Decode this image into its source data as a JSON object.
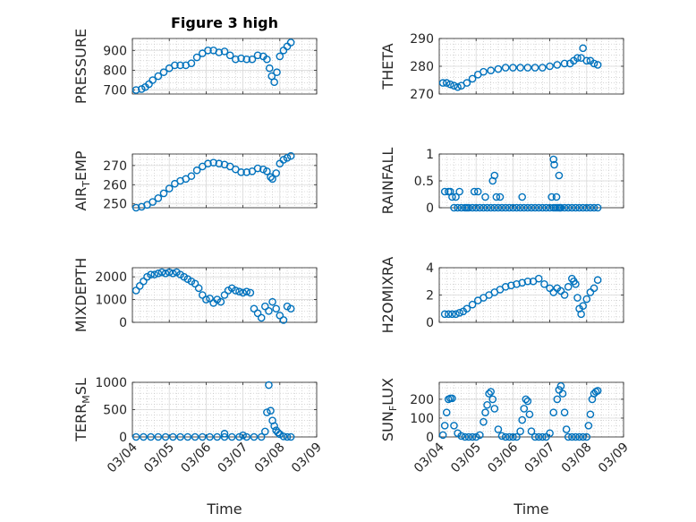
{
  "figure": {
    "title": "Figure 3 high",
    "colors": {
      "marker": "#0072BD",
      "axis": "#262626",
      "grid": "#bfbfbf",
      "background": "#ffffff"
    },
    "x_tick_labels": [
      "03/04",
      "03/05",
      "03/06",
      "03/07",
      "03/08",
      "03/09"
    ],
    "xlabel": "Time"
  },
  "chart_data": [
    {
      "type": "scatter",
      "title": "Figure 3 high",
      "ylabel": {
        "main": "PRESSURE"
      },
      "xlim": [
        0,
        5
      ],
      "ylim": [
        680,
        960
      ],
      "yticks": [
        700,
        800,
        900
      ],
      "grid": true,
      "minor_grid": true,
      "series": [
        {
          "x": [
            0.1,
            0.25,
            0.35,
            0.45,
            0.55,
            0.7,
            0.85,
            1.0,
            1.15,
            1.3,
            1.45,
            1.6,
            1.75,
            1.9,
            2.05,
            2.2,
            2.35,
            2.5,
            2.65,
            2.8,
            2.95,
            3.1,
            3.25,
            3.4,
            3.55,
            3.65,
            3.72,
            3.78,
            3.85,
            3.92,
            4.0,
            4.1,
            4.2,
            4.3
          ],
          "y": [
            700,
            705,
            715,
            730,
            750,
            770,
            790,
            810,
            825,
            825,
            825,
            835,
            865,
            885,
            900,
            900,
            890,
            895,
            875,
            855,
            860,
            855,
            855,
            875,
            870,
            855,
            810,
            770,
            740,
            790,
            870,
            900,
            920,
            940
          ]
        }
      ]
    },
    {
      "type": "scatter",
      "ylabel": {
        "main": "THETA"
      },
      "xlim": [
        0,
        5
      ],
      "ylim": [
        270,
        290
      ],
      "yticks": [
        270,
        280,
        290
      ],
      "grid": true,
      "minor_grid": true,
      "series": [
        {
          "x": [
            0.1,
            0.2,
            0.3,
            0.4,
            0.5,
            0.6,
            0.75,
            0.9,
            1.05,
            1.2,
            1.4,
            1.6,
            1.8,
            2.0,
            2.2,
            2.4,
            2.6,
            2.8,
            3.0,
            3.2,
            3.4,
            3.55,
            3.65,
            3.75,
            3.85,
            3.9,
            4.0,
            4.1,
            4.2,
            4.3
          ],
          "y": [
            274,
            274,
            273.5,
            273,
            272.5,
            273,
            274,
            275.5,
            277,
            278,
            278.5,
            279,
            279.5,
            279.5,
            279.5,
            279.5,
            279.5,
            279.5,
            280,
            280.5,
            281,
            281,
            282,
            283,
            283,
            286.5,
            282,
            282,
            281,
            280.5
          ]
        }
      ]
    },
    {
      "type": "scatter",
      "ylabel": {
        "main": "AIR",
        "sub": "T",
        "rest": "EMP"
      },
      "xlim": [
        0,
        5
      ],
      "ylim": [
        248,
        276
      ],
      "yticks": [
        250,
        260,
        270
      ],
      "grid": true,
      "minor_grid": true,
      "series": [
        {
          "x": [
            0.1,
            0.25,
            0.4,
            0.55,
            0.7,
            0.85,
            1.0,
            1.15,
            1.3,
            1.45,
            1.6,
            1.75,
            1.9,
            2.05,
            2.2,
            2.35,
            2.5,
            2.65,
            2.8,
            2.95,
            3.1,
            3.25,
            3.4,
            3.55,
            3.65,
            3.75,
            3.8,
            3.9,
            4.0,
            4.1,
            4.2,
            4.3
          ],
          "y": [
            248,
            248.5,
            249.5,
            251,
            253,
            255.5,
            258,
            260.5,
            262,
            263,
            264.5,
            267.5,
            269.5,
            271,
            271.5,
            271,
            270.5,
            269.5,
            268,
            266.5,
            266.5,
            267,
            268.5,
            268,
            267,
            264,
            263,
            266,
            271,
            273,
            274,
            275
          ]
        }
      ]
    },
    {
      "type": "scatter",
      "ylabel": {
        "main": "RAINFALL"
      },
      "xlim": [
        0,
        5
      ],
      "ylim": [
        0,
        1
      ],
      "yticks": [
        0,
        0.5,
        1
      ],
      "ytick_labels": [
        "0",
        "0.5",
        "1"
      ],
      "grid": true,
      "minor_grid": true,
      "series": [
        {
          "x": [
            0.15,
            0.25,
            0.3,
            0.4,
            0.5,
            0.55,
            0.6,
            0.7,
            0.75,
            0.8,
            0.9,
            1.0,
            1.1,
            1.2,
            1.3,
            1.4,
            1.5,
            1.55,
            1.6,
            1.7,
            1.8,
            1.9,
            2.0,
            2.1,
            2.2,
            2.3,
            2.4,
            2.5,
            2.6,
            2.7,
            2.8,
            2.9,
            3.0,
            3.1,
            3.15,
            3.2,
            3.25,
            3.3,
            3.4,
            3.5,
            3.6,
            3.7,
            3.8,
            3.9,
            4.0,
            4.1,
            4.2,
            4.3,
            0.35,
            0.45,
            0.95,
            1.05,
            1.25,
            1.45,
            1.5,
            1.65,
            2.25,
            3.05,
            3.1,
            3.12,
            3.18,
            3.25,
            3.28
          ],
          "y": [
            0.3,
            0.3,
            0.3,
            0,
            0,
            0.3,
            0,
            0,
            0,
            0,
            0,
            0,
            0,
            0,
            0,
            0,
            0,
            0.2,
            0,
            0,
            0,
            0,
            0,
            0,
            0,
            0,
            0,
            0,
            0,
            0,
            0,
            0,
            0,
            0,
            0,
            0,
            0,
            0,
            0,
            0,
            0,
            0,
            0,
            0,
            0,
            0,
            0,
            0,
            0.2,
            0.2,
            0.3,
            0.3,
            0.2,
            0.5,
            0.6,
            0.2,
            0.2,
            0.2,
            0.9,
            0.8,
            0.2,
            0.6,
            0
          ]
        }
      ]
    },
    {
      "type": "scatter",
      "ylabel": {
        "main": "MIXDEPTH"
      },
      "xlim": [
        0,
        5
      ],
      "ylim": [
        0,
        2400
      ],
      "yticks": [
        0,
        1000,
        2000
      ],
      "grid": true,
      "minor_grid": true,
      "series": [
        {
          "x": [
            0.1,
            0.2,
            0.3,
            0.4,
            0.5,
            0.6,
            0.7,
            0.8,
            0.9,
            1.0,
            1.1,
            1.2,
            1.3,
            1.4,
            1.5,
            1.6,
            1.7,
            1.8,
            1.9,
            2.0,
            2.1,
            2.2,
            2.3,
            2.4,
            2.5,
            2.6,
            2.7,
            2.8,
            2.9,
            3.0,
            3.1,
            3.2,
            3.3,
            3.4,
            3.5,
            3.6,
            3.7,
            3.8,
            3.9,
            4.0,
            4.1,
            4.2,
            4.3
          ],
          "y": [
            1400,
            1600,
            1800,
            2000,
            2100,
            2100,
            2150,
            2200,
            2150,
            2200,
            2150,
            2200,
            2100,
            2000,
            1900,
            1800,
            1700,
            1500,
            1200,
            1000,
            1050,
            850,
            1000,
            900,
            1200,
            1400,
            1500,
            1400,
            1350,
            1300,
            1350,
            1300,
            600,
            400,
            200,
            700,
            500,
            900,
            600,
            300,
            100,
            700,
            600
          ]
        }
      ]
    },
    {
      "type": "scatter",
      "ylabel": {
        "main": "H2OMIXRA"
      },
      "xlim": [
        0,
        5
      ],
      "ylim": [
        0,
        4
      ],
      "yticks": [
        0,
        2,
        4
      ],
      "grid": true,
      "minor_grid": true,
      "series": [
        {
          "x": [
            0.15,
            0.25,
            0.35,
            0.45,
            0.55,
            0.65,
            0.75,
            0.9,
            1.05,
            1.2,
            1.35,
            1.5,
            1.65,
            1.8,
            1.95,
            2.1,
            2.25,
            2.4,
            2.55,
            2.7,
            2.85,
            3.0,
            3.1,
            3.2,
            3.3,
            3.4,
            3.5,
            3.6,
            3.65,
            3.7,
            3.75,
            3.8,
            3.85,
            3.9,
            4.0,
            4.1,
            4.2,
            4.3
          ],
          "y": [
            0.6,
            0.6,
            0.6,
            0.6,
            0.7,
            0.8,
            1.0,
            1.3,
            1.6,
            1.8,
            2.0,
            2.2,
            2.4,
            2.6,
            2.7,
            2.8,
            2.9,
            3.0,
            3.0,
            3.2,
            2.8,
            2.5,
            2.2,
            2.5,
            2.3,
            2.0,
            2.6,
            3.2,
            3.0,
            2.8,
            1.8,
            1.0,
            0.6,
            1.2,
            1.7,
            2.2,
            2.5,
            3.1
          ]
        }
      ]
    },
    {
      "type": "scatter",
      "ylabel": {
        "main": "TERR",
        "sub": "M",
        "rest": "SL"
      },
      "xlim": [
        0,
        5
      ],
      "ylim": [
        0,
        1000
      ],
      "yticks": [
        0,
        500,
        1000
      ],
      "grid": true,
      "minor_grid": true,
      "series": [
        {
          "x": [
            0.1,
            0.3,
            0.5,
            0.7,
            0.9,
            1.1,
            1.3,
            1.5,
            1.7,
            1.9,
            2.1,
            2.3,
            2.5,
            2.7,
            2.9,
            3.1,
            3.3,
            3.5,
            3.6,
            3.65,
            3.7,
            3.75,
            3.8,
            3.85,
            3.9,
            3.95,
            4.0,
            4.1,
            4.2,
            4.3,
            2.5,
            3.0
          ],
          "y": [
            0,
            0,
            0,
            0,
            0,
            0,
            0,
            0,
            0,
            0,
            0,
            0,
            0,
            0,
            0,
            0,
            0,
            0,
            100,
            450,
            950,
            480,
            300,
            200,
            120,
            80,
            50,
            10,
            0,
            0,
            60,
            30
          ]
        }
      ]
    },
    {
      "type": "scatter",
      "ylabel": {
        "main": "SUN",
        "sub": "F",
        "rest": "LUX"
      },
      "xlim": [
        0,
        5
      ],
      "ylim": [
        0,
        290
      ],
      "yticks": [
        0,
        100,
        200
      ],
      "grid": true,
      "minor_grid": true,
      "series": [
        {
          "x": [
            0.1,
            0.15,
            0.2,
            0.25,
            0.3,
            0.35,
            0.4,
            0.5,
            0.6,
            0.7,
            0.8,
            0.9,
            1.0,
            1.1,
            1.2,
            1.25,
            1.3,
            1.35,
            1.4,
            1.45,
            1.5,
            1.6,
            1.7,
            1.8,
            1.9,
            2.0,
            2.1,
            2.2,
            2.25,
            2.3,
            2.35,
            2.4,
            2.45,
            2.5,
            2.6,
            2.7,
            2.8,
            2.9,
            3.0,
            3.1,
            3.2,
            3.25,
            3.3,
            3.35,
            3.4,
            3.45,
            3.5,
            3.6,
            3.7,
            3.8,
            3.9,
            4.0,
            4.05,
            4.1,
            4.15,
            4.2,
            4.25,
            4.3
          ],
          "y": [
            10,
            60,
            130,
            200,
            205,
            205,
            60,
            20,
            5,
            0,
            0,
            0,
            0,
            10,
            80,
            130,
            170,
            230,
            240,
            200,
            150,
            40,
            5,
            0,
            0,
            0,
            0,
            30,
            90,
            150,
            200,
            190,
            120,
            30,
            0,
            0,
            0,
            0,
            20,
            130,
            200,
            250,
            270,
            230,
            130,
            40,
            0,
            0,
            0,
            0,
            0,
            0,
            60,
            120,
            200,
            230,
            240,
            245
          ]
        }
      ]
    }
  ]
}
